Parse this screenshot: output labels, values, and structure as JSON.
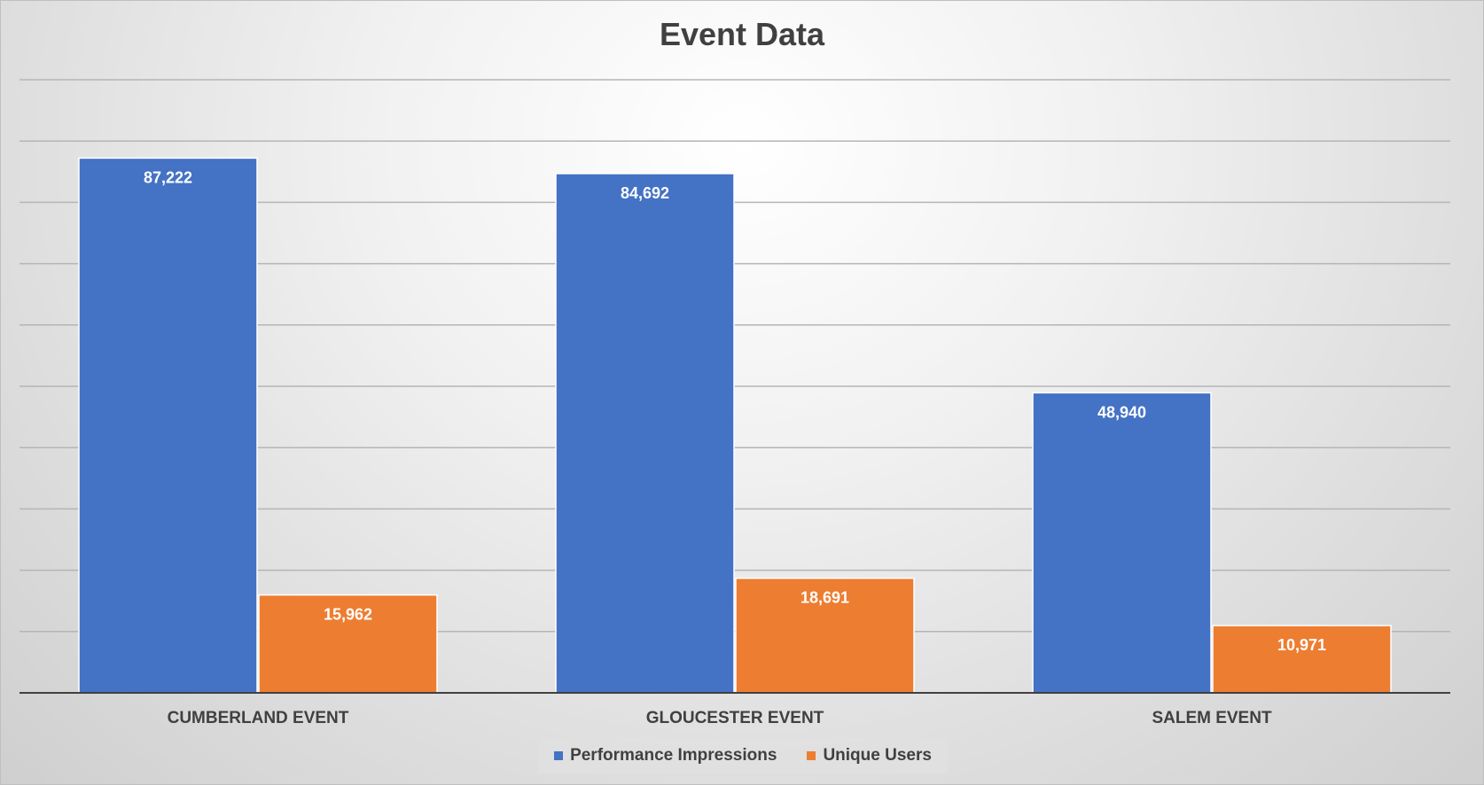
{
  "chart_data": {
    "type": "bar",
    "title": "Event Data",
    "categories": [
      "CUMBERLAND EVENT",
      "GLOUCESTER EVENT",
      "SALEM EVENT"
    ],
    "series": [
      {
        "name": "Performance Impressions",
        "values": [
          87222,
          84692,
          48940
        ],
        "labels": [
          "87,222",
          "84,692",
          "48,940"
        ],
        "color": "#4472C4"
      },
      {
        "name": "Unique Users",
        "values": [
          15962,
          18691,
          10971
        ],
        "labels": [
          "15,962",
          "18,691",
          "10,971"
        ],
        "color": "#ED7D31"
      }
    ],
    "xlabel": "",
    "ylabel": "",
    "ylim": [
      0,
      100000
    ],
    "ytick_step": 10000,
    "grid": true,
    "legend_position": "bottom"
  }
}
